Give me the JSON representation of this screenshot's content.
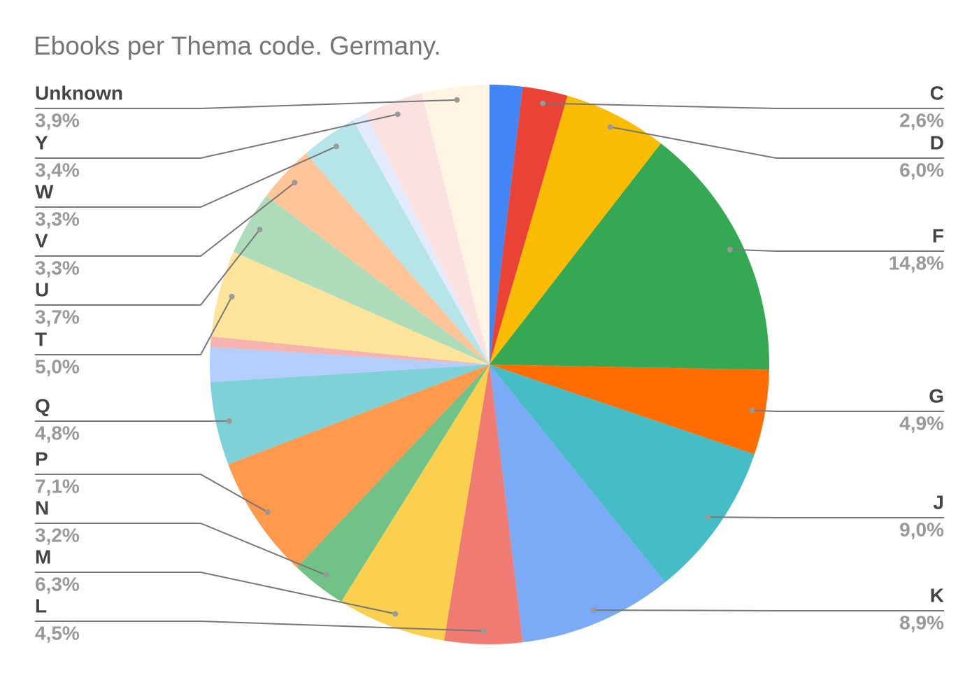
{
  "chart_data": {
    "type": "pie",
    "title": "Ebooks per Thema code. Germany.",
    "categories": [
      null,
      "C",
      "D",
      "F",
      "G",
      "J",
      "K",
      "L",
      "M",
      "N",
      "P",
      "Q",
      null,
      null,
      "T",
      "U",
      "V",
      "W",
      null,
      "Y",
      "Unknown"
    ],
    "values": [
      1.9,
      2.6,
      6.0,
      14.8,
      4.9,
      9.0,
      8.9,
      4.5,
      6.3,
      3.2,
      7.1,
      4.8,
      2.0,
      0.6,
      5.0,
      3.7,
      3.3,
      3.3,
      0.8,
      3.4,
      3.9
    ],
    "value_labels": [
      null,
      "2,6%",
      "6,0%",
      "14,8%",
      "4,9%",
      "9,0%",
      "8,9%",
      "4,5%",
      "6,3%",
      "3,2%",
      "7,1%",
      "4,8%",
      null,
      null,
      "5,0%",
      "3,7%",
      "3,3%",
      "3,3%",
      null,
      "3,4%",
      "3,9%"
    ],
    "colors": [
      "#4285f4",
      "#ea4335",
      "#fbbc04",
      "#34a853",
      "#ff6d01",
      "#46bdc6",
      "#7baaf7",
      "#f07b72",
      "#fcd04f",
      "#71c287",
      "#ff994d",
      "#7ed1d7",
      "#b3cefb",
      "#f7b4ae",
      "#fde49b",
      "#aedcba",
      "#ffc599",
      "#b5e5e8",
      "#e1ebfd",
      "#fbe1df",
      "#fff5e2"
    ]
  }
}
